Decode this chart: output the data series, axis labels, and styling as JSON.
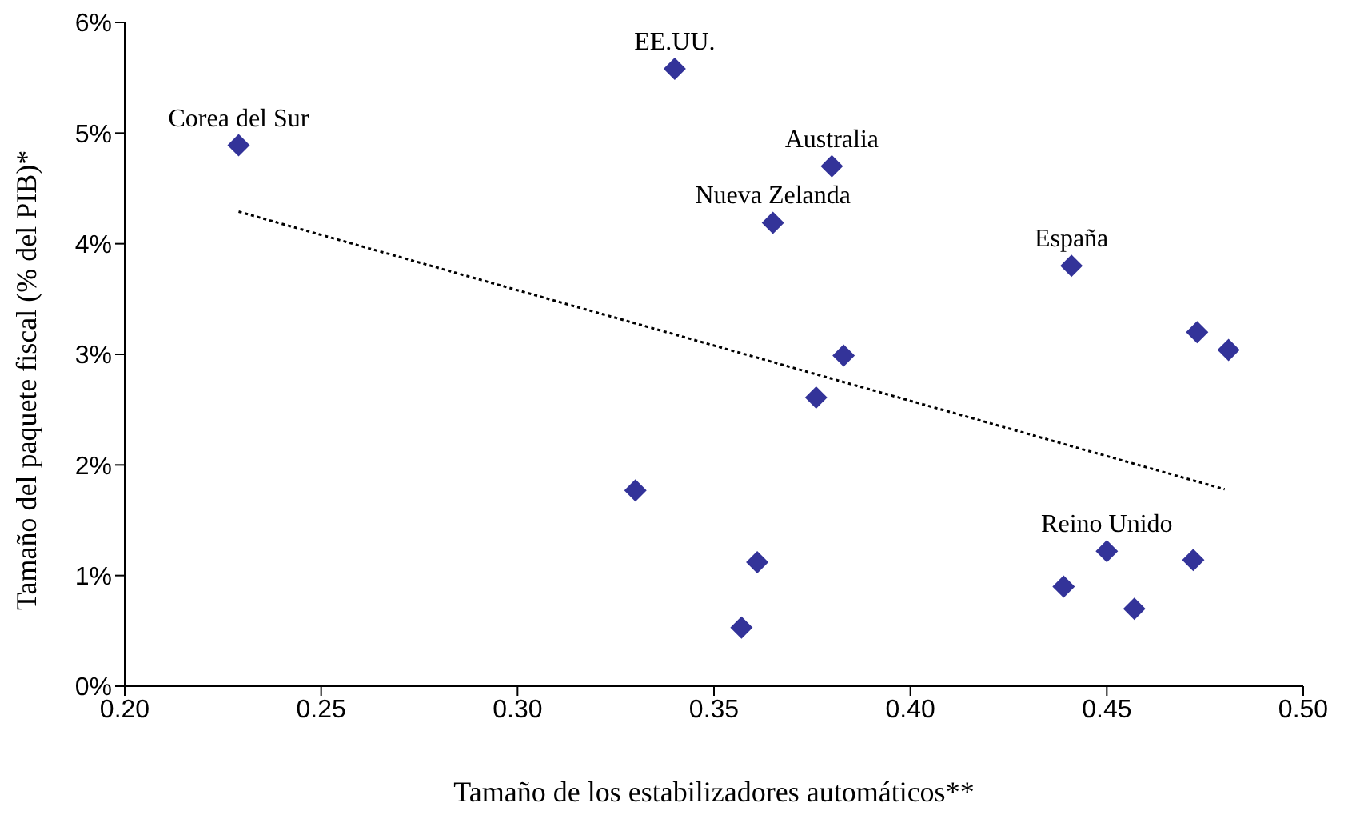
{
  "chart_data": {
    "type": "scatter",
    "xlabel": "Tamaño de los estabilizadores automáticos**",
    "ylabel": "Tamaño del paquete fiscal (% del PIB)*",
    "marker": "diamond",
    "legend": false,
    "grid": false,
    "xlim": [
      0.2,
      0.5
    ],
    "xticks": [
      {
        "value": 0.2,
        "label": "0.20"
      },
      {
        "value": 0.25,
        "label": "0.25"
      },
      {
        "value": 0.3,
        "label": "0.30"
      },
      {
        "value": 0.35,
        "label": "0.35"
      },
      {
        "value": 0.4,
        "label": "0.40"
      },
      {
        "value": 0.45,
        "label": "0.45"
      },
      {
        "value": 0.5,
        "label": "0.50"
      }
    ],
    "ylim": [
      0,
      6
    ],
    "yticks": [
      {
        "value": 0,
        "label": "0%"
      },
      {
        "value": 1,
        "label": "1%"
      },
      {
        "value": 2,
        "label": "2%"
      },
      {
        "value": 3,
        "label": "3%"
      },
      {
        "value": 4,
        "label": "4%"
      },
      {
        "value": 5,
        "label": "5%"
      },
      {
        "value": 6,
        "label": "6%"
      }
    ],
    "x": [
      0.229,
      0.34,
      0.38,
      0.365,
      0.441,
      0.473,
      0.481,
      0.383,
      0.376,
      0.33,
      0.361,
      0.357,
      0.439,
      0.45,
      0.457,
      0.472
    ],
    "series": [
      {
        "color": "#333399",
        "values": [
          4.89,
          5.58,
          4.7,
          4.19,
          3.8,
          3.2,
          3.04,
          2.99,
          2.61,
          1.77,
          1.12,
          0.53,
          0.9,
          1.22,
          0.7,
          1.14
        ]
      },
      {
        "type": "line",
        "color": "#000000",
        "marker": "none",
        "line_style": "dotted",
        "x": [
          0.229,
          0.48
        ],
        "values": [
          4.29,
          1.78
        ]
      }
    ],
    "annotations": [
      {
        "text": "Corea del Sur",
        "x": 0.229,
        "y": 4.89
      },
      {
        "text": "EE.UU.",
        "x": 0.34,
        "y": 5.58
      },
      {
        "text": "Australia",
        "x": 0.38,
        "y": 4.7
      },
      {
        "text": "Nueva Zelanda",
        "x": 0.365,
        "y": 4.19
      },
      {
        "text": "España",
        "x": 0.441,
        "y": 3.8
      },
      {
        "text": "Reino Unido",
        "x": 0.45,
        "y": 1.22
      }
    ]
  }
}
